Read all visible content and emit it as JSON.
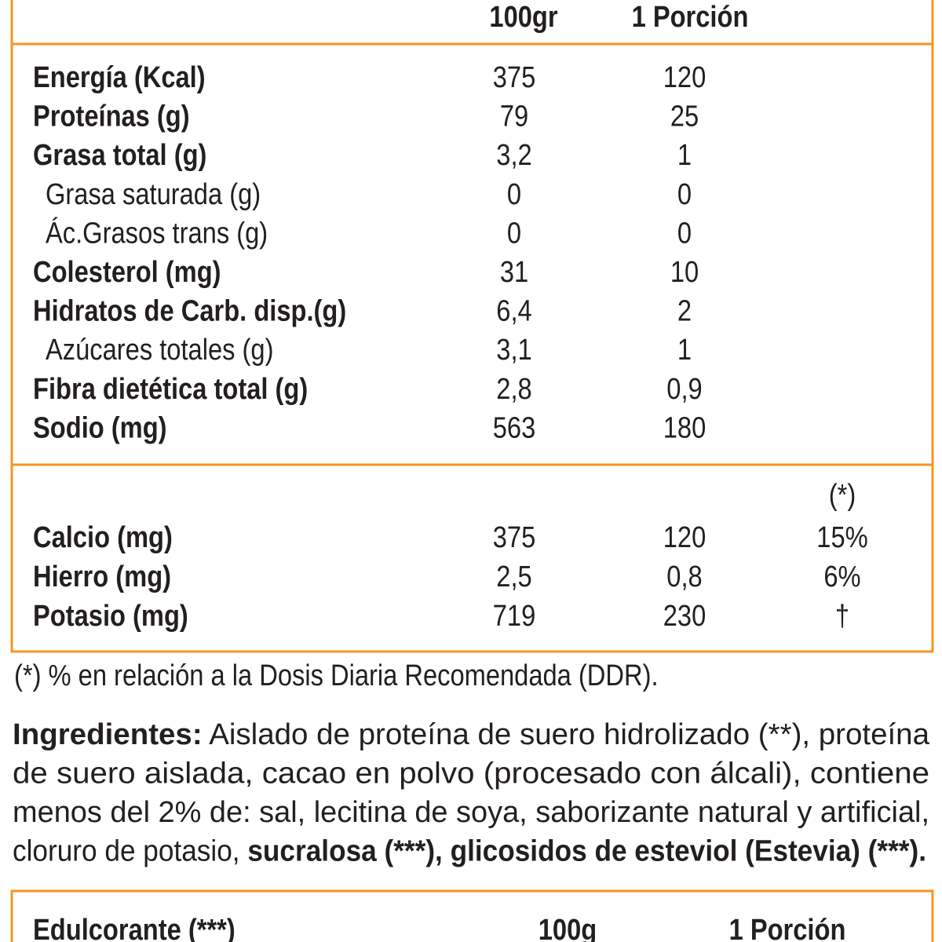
{
  "table": {
    "headers": [
      "100gr",
      "1 Porción"
    ],
    "rows": [
      {
        "label": "Energía (Kcal)",
        "level": 1,
        "values": [
          "375",
          "120"
        ]
      },
      {
        "label": "Proteínas (g)",
        "level": 1,
        "values": [
          "79",
          "25"
        ]
      },
      {
        "label": "Grasa total (g)",
        "level": 1,
        "values": [
          "3,2",
          "1"
        ]
      },
      {
        "label": "Grasa saturada (g)",
        "level": 2,
        "values": [
          "0",
          "0"
        ]
      },
      {
        "label": "Ác.Grasos trans (g)",
        "level": 2,
        "values": [
          "0",
          "0"
        ]
      },
      {
        "label": "Colesterol (mg)",
        "level": 1,
        "values": [
          "31",
          "10"
        ]
      },
      {
        "label": "Hidratos de Carb. disp.(g)",
        "level": 1,
        "values": [
          "6,4",
          "2"
        ]
      },
      {
        "label": "Azúcares totales (g)",
        "level": 2,
        "values": [
          "3,1",
          "1"
        ]
      },
      {
        "label": "Fibra dietética total (g)",
        "level": 1,
        "values": [
          "2,8",
          "0,9"
        ]
      },
      {
        "label": "Sodio (mg)",
        "level": 1,
        "values": [
          "563",
          "180"
        ]
      }
    ],
    "minerals_header": "(*)",
    "minerals": [
      {
        "label": "Calcio (mg)",
        "values": [
          "375",
          "120",
          "15%"
        ]
      },
      {
        "label": "Hierro (mg)",
        "values": [
          "2,5",
          "0,8",
          "6%"
        ]
      },
      {
        "label": "Potasio (mg)",
        "values": [
          "719",
          "230",
          "†"
        ]
      }
    ]
  },
  "footnote": "(*) % en relación a la Dosis Diaria Recomendada (DDR).",
  "ingredients": [
    [
      {
        "text": "Ingredientes:",
        "bold": true
      },
      {
        "text": " Aislado de proteína de suero hidrolizado (**), proteína",
        "bold": false
      }
    ],
    [
      {
        "text": "de suero aislada, cacao en polvo (procesado con álcali), contiene",
        "bold": false
      }
    ],
    [
      {
        "text": "menos del 2% de: sal, lecitina de soya, saborizante natural y artificial,",
        "bold": false
      }
    ],
    [
      {
        "text": "cloruro de potasio, ",
        "bold": false
      },
      {
        "text": "sucralosa (***), glicosidos de esteviol (Estevia) (***).",
        "bold": true
      }
    ]
  ],
  "sweetener_table": {
    "headers": [
      "Edulcorante (***)",
      "100g",
      "1 Porción"
    ]
  }
}
